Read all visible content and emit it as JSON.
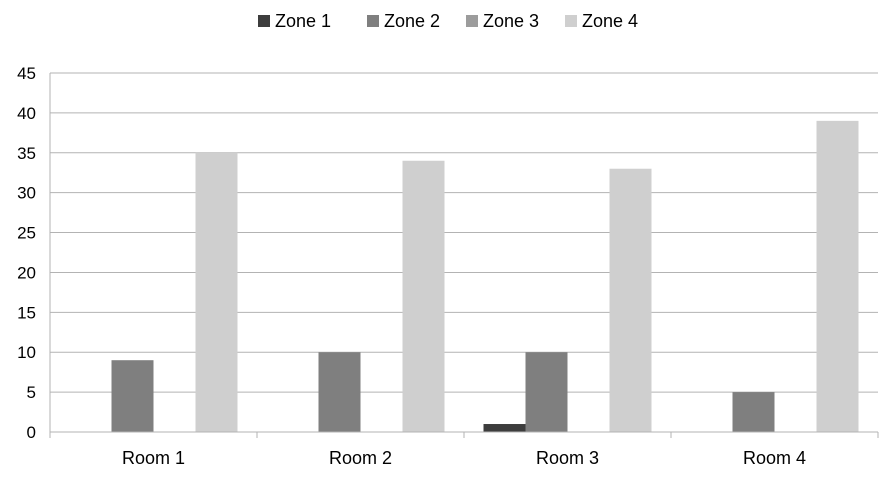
{
  "chart_data": {
    "type": "bar",
    "title": "",
    "xlabel": "",
    "ylabel": "",
    "categories": [
      "Room 1",
      "Room 2",
      "Room 3",
      "Room 4"
    ],
    "series": [
      {
        "name": "Zone 1",
        "values": [
          0,
          0,
          1,
          0
        ]
      },
      {
        "name": "Zone 2",
        "values": [
          9,
          10,
          10,
          5
        ]
      },
      {
        "name": "Zone 3",
        "values": [
          0,
          0,
          0,
          0
        ]
      },
      {
        "name": "Zone 4",
        "values": [
          35,
          34,
          33,
          39
        ]
      }
    ],
    "colors": [
      "#3d3d3d",
      "#7f7f7f",
      "#9c9c9c",
      "#cfcfcf"
    ],
    "ylim": [
      0,
      45
    ],
    "yticks": [
      0,
      5,
      10,
      15,
      20,
      25,
      30,
      35,
      40,
      45
    ],
    "grid": true,
    "legend": "top-center"
  }
}
